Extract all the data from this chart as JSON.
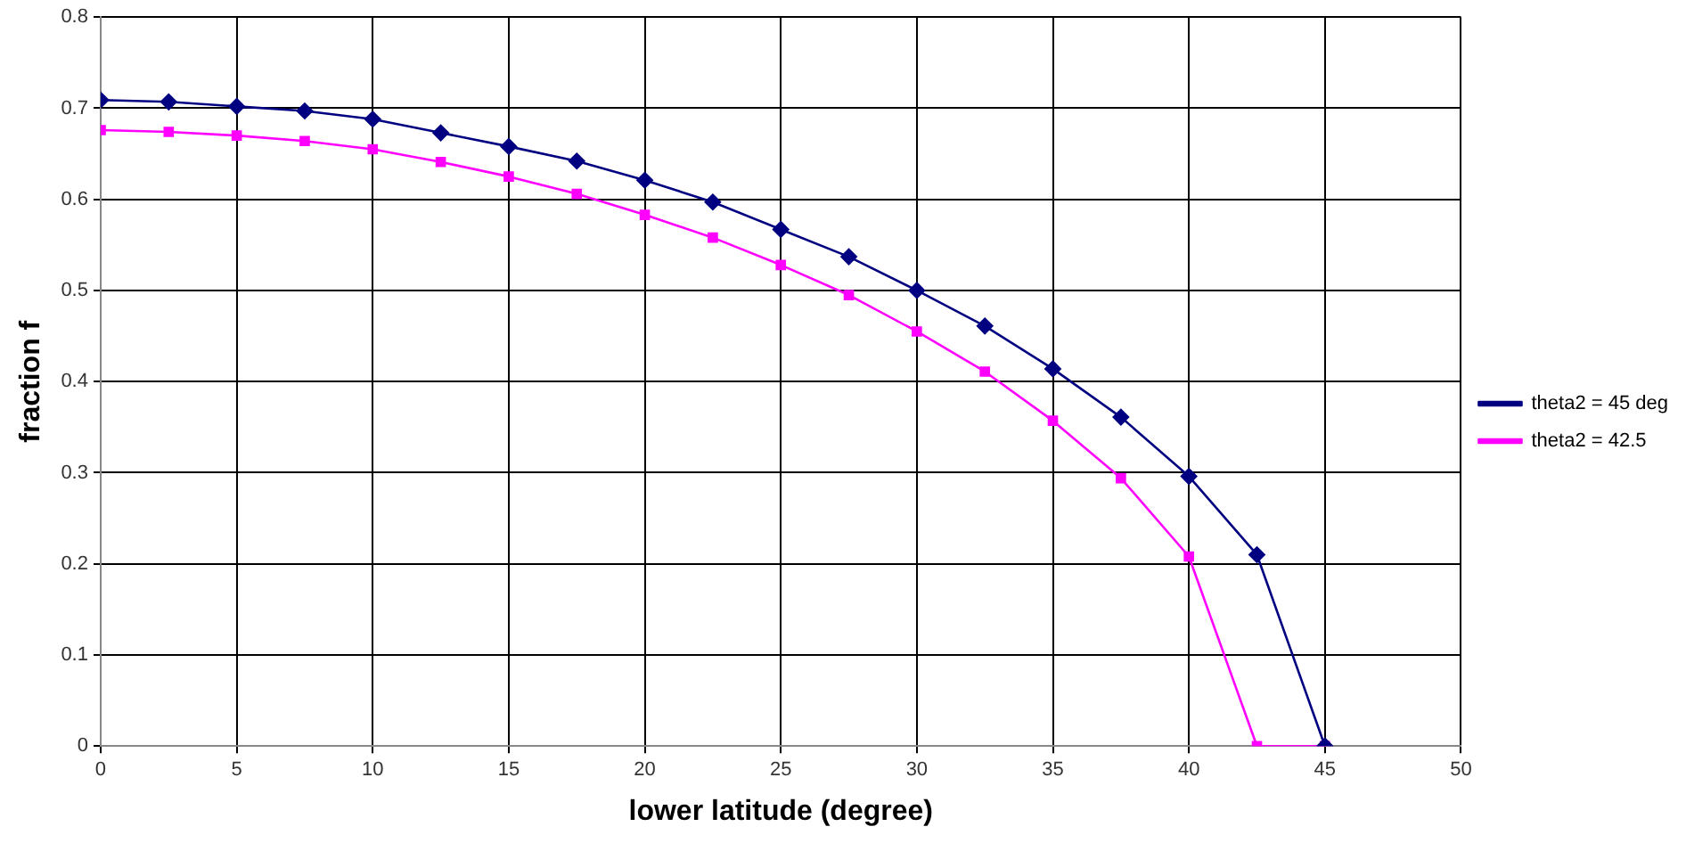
{
  "chart_data": {
    "type": "line",
    "xlabel": "lower latitude (degree)",
    "ylabel": "fraction f",
    "x": [
      0,
      2.5,
      5,
      7.5,
      10,
      12.5,
      15,
      17.5,
      20,
      22.5,
      25,
      27.5,
      30,
      32.5,
      35,
      37.5,
      40,
      42.5,
      45
    ],
    "series": [
      {
        "name": "theta2 = 45 deg",
        "color": "#000080",
        "marker": "diamond",
        "values": [
          0.709,
          0.707,
          0.702,
          0.697,
          0.688,
          0.673,
          0.658,
          0.642,
          0.621,
          0.597,
          0.567,
          0.537,
          0.5,
          0.461,
          0.414,
          0.361,
          0.296,
          0.21,
          0
        ]
      },
      {
        "name": "theta2 = 42.5",
        "color": "#ff00ff",
        "marker": "square",
        "values": [
          0.676,
          0.674,
          0.67,
          0.664,
          0.655,
          0.641,
          0.625,
          0.606,
          0.583,
          0.558,
          0.528,
          0.495,
          0.455,
          0.411,
          0.357,
          0.294,
          0.208,
          0,
          0
        ]
      }
    ],
    "xlim": [
      0,
      50
    ],
    "xticks": [
      0,
      5,
      10,
      15,
      20,
      25,
      30,
      35,
      40,
      45,
      50
    ],
    "ylim": [
      0,
      0.8
    ],
    "yticks": [
      0,
      0.1,
      0.2,
      0.3,
      0.4,
      0.5,
      0.6,
      0.7,
      0.8
    ],
    "grid": true,
    "legend": "right",
    "line_style": "solid"
  }
}
